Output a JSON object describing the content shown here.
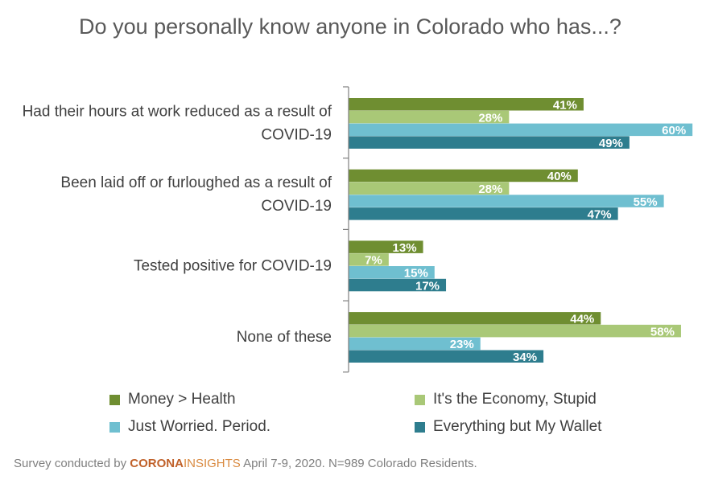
{
  "chart_data": {
    "type": "bar",
    "orientation": "horizontal",
    "title": "Do you personally know anyone in Colorado who has...?",
    "categories": [
      "Had their hours at work reduced as a result of COVID-19",
      "Been laid off or furloughed as a result of COVID-19",
      "Tested positive for COVID-19",
      "None of these"
    ],
    "series": [
      {
        "name": "Money > Health",
        "color": "#6f8e31",
        "values": [
          41,
          40,
          13,
          44
        ]
      },
      {
        "name": "It's the Economy, Stupid",
        "color": "#a9c877",
        "values": [
          28,
          28,
          7,
          58
        ]
      },
      {
        "name": "Just Worried. Period.",
        "color": "#6fbfd0",
        "values": [
          60,
          55,
          15,
          23
        ]
      },
      {
        "name": "Everything but My Wallet",
        "color": "#2e7d8e",
        "values": [
          49,
          47,
          17,
          34
        ]
      }
    ],
    "value_format": "percent",
    "legend_position": "bottom",
    "grid": false
  },
  "footer": {
    "prefix": "Survey conducted by ",
    "brand_part1": "CORONA",
    "brand_part2": "INSIGHTS",
    "suffix": " April 7-9, 2020. N=989 Colorado Residents."
  }
}
